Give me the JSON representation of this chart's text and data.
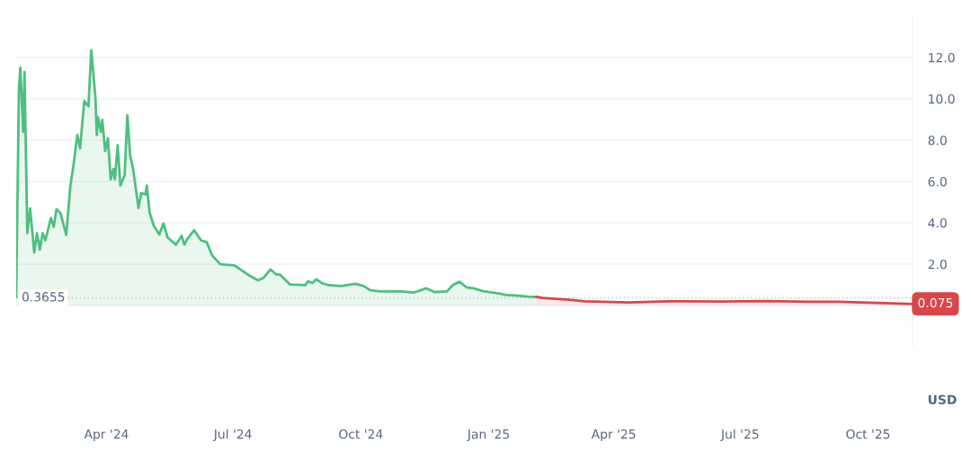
{
  "chart_data": {
    "type": "area",
    "xlim": [
      "2024-01-27",
      "2025-11-02"
    ],
    "xticks": [
      {
        "value": "2024-04-01",
        "label": "Apr '24"
      },
      {
        "value": "2024-07-01",
        "label": "Jul '24"
      },
      {
        "value": "2024-10-01",
        "label": "Oct '24"
      },
      {
        "value": "2025-01-01",
        "label": "Jan '25"
      },
      {
        "value": "2025-04-01",
        "label": "Apr '25"
      },
      {
        "value": "2025-07-01",
        "label": "Jul '25"
      },
      {
        "value": "2025-10-01",
        "label": "Oct '25"
      }
    ],
    "ylim": [
      -2.0,
      14.0
    ],
    "yticks": [
      {
        "value": 0,
        "label": null
      },
      {
        "value": 2,
        "label": "2.0"
      },
      {
        "value": 4,
        "label": "4.0"
      },
      {
        "value": 6,
        "label": "6.0"
      },
      {
        "value": 8,
        "label": "8.0"
      },
      {
        "value": 10,
        "label": "10.0"
      },
      {
        "value": 12,
        "label": "12.0"
      }
    ],
    "grid": "y",
    "legend": false,
    "marker": "none",
    "line_style": "solid",
    "series": [
      {
        "color": "#4fbf7f",
        "x": [
          "2024-01-27",
          "2024-01-29",
          "2024-01-30",
          "2024-02-01",
          "2024-02-02",
          "2024-02-04",
          "2024-02-06",
          "2024-02-09",
          "2024-02-11",
          "2024-02-13",
          "2024-02-15",
          "2024-02-17",
          "2024-02-21",
          "2024-02-23",
          "2024-02-25",
          "2024-02-28",
          "2024-03-03",
          "2024-03-06",
          "2024-03-08",
          "2024-03-11",
          "2024-03-13",
          "2024-03-14",
          "2024-03-16",
          "2024-03-19",
          "2024-03-21",
          "2024-03-24",
          "2024-03-25",
          "2024-03-26",
          "2024-03-28",
          "2024-03-29",
          "2024-03-31",
          "2024-04-02",
          "2024-04-04",
          "2024-04-06",
          "2024-04-07",
          "2024-04-09",
          "2024-04-11",
          "2024-04-14",
          "2024-04-16",
          "2024-04-18",
          "2024-04-20",
          "2024-04-24",
          "2024-04-26",
          "2024-04-29",
          "2024-04-30",
          "2024-05-02",
          "2024-05-05",
          "2024-05-09",
          "2024-05-12",
          "2024-05-15",
          "2024-05-21",
          "2024-05-25",
          "2024-05-27",
          "2024-05-29",
          "2024-06-03",
          "2024-06-08",
          "2024-06-12",
          "2024-06-16",
          "2024-06-22",
          "2024-07-02",
          "2024-07-12",
          "2024-07-19",
          "2024-07-23",
          "2024-07-28",
          "2024-08-01",
          "2024-08-04",
          "2024-08-11",
          "2024-08-22",
          "2024-08-24",
          "2024-08-27",
          "2024-08-30",
          "2024-09-03",
          "2024-09-08",
          "2024-09-17",
          "2024-09-27",
          "2024-10-03",
          "2024-10-08",
          "2024-10-15",
          "2024-10-28",
          "2024-11-08",
          "2024-11-17",
          "2024-11-23",
          "2024-12-02",
          "2024-12-06",
          "2024-12-11",
          "2024-12-16",
          "2024-12-21",
          "2024-12-28",
          "2025-01-07",
          "2025-01-14",
          "2025-01-20",
          "2025-01-29",
          "2025-02-04"
        ],
        "values": [
          0.4,
          10.55,
          11.5,
          8.4,
          11.3,
          3.5,
          4.7,
          2.56,
          3.5,
          2.7,
          3.5,
          3.15,
          4.23,
          3.8,
          4.66,
          4.45,
          3.41,
          5.8,
          6.67,
          8.25,
          7.6,
          8.4,
          9.9,
          9.63,
          12.35,
          10.1,
          8.25,
          9.1,
          8.4,
          8.98,
          7.47,
          8.1,
          6.1,
          6.6,
          6.1,
          7.75,
          5.8,
          6.3,
          9.2,
          7.25,
          6.67,
          4.72,
          5.44,
          5.37,
          5.8,
          4.5,
          3.86,
          3.43,
          3.97,
          3.28,
          2.94,
          3.37,
          2.94,
          3.2,
          3.64,
          3.15,
          3.07,
          2.42,
          1.99,
          1.94,
          1.48,
          1.22,
          1.34,
          1.74,
          1.51,
          1.48,
          1.02,
          0.98,
          1.17,
          1.08,
          1.27,
          1.08,
          0.98,
          0.94,
          1.05,
          0.94,
          0.73,
          0.68,
          0.69,
          0.62,
          0.83,
          0.65,
          0.68,
          0.98,
          1.15,
          0.88,
          0.83,
          0.69,
          0.59,
          0.51,
          0.48,
          0.43,
          0.42
        ]
      },
      {
        "color": "#d9474a",
        "x": [
          "2025-02-04",
          "2025-02-09",
          "2025-02-28",
          "2025-03-11",
          "2025-04-12",
          "2025-04-23",
          "2025-05-10",
          "2025-06-16",
          "2025-07-19",
          "2025-08-20",
          "2025-09-10",
          "2025-10-02",
          "2025-10-13",
          "2025-11-02"
        ],
        "values": [
          0.42,
          0.36,
          0.28,
          0.2,
          0.15,
          0.17,
          0.2,
          0.19,
          0.21,
          0.18,
          0.18,
          0.14,
          0.11,
          0.075
        ]
      }
    ],
    "ref_lines": [
      {
        "axis": "y",
        "value": 0.3655,
        "label": "0.3655",
        "color": "#cfd3da",
        "line_style": "dotted"
      }
    ],
    "annotations": [
      {
        "text": "0.075",
        "x": "2025-11-02",
        "y": 0.075
      },
      "USD"
    ]
  }
}
